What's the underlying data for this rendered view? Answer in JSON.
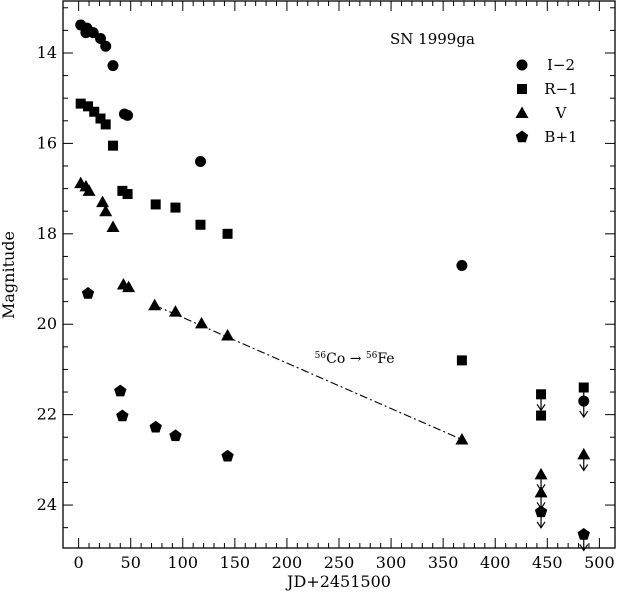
{
  "chart_data": {
    "type": "scatter",
    "title": "SN 1999ga",
    "xlabel": "JD+2451500",
    "ylabel": "Magnitude",
    "xlim": [
      -15,
      515
    ],
    "ylim": [
      24.95,
      12.85
    ],
    "y_inverted": true,
    "grid": false,
    "legend_position": "top-right",
    "xticks": [
      0,
      50,
      100,
      150,
      200,
      250,
      300,
      350,
      400,
      450,
      500
    ],
    "yticks": [
      14,
      16,
      18,
      20,
      22,
      24
    ],
    "annotation": {
      "text_parts": [
        "56",
        "Co",
        " → ",
        "56",
        "Fe"
      ],
      "x": 265,
      "y": 20.75
    },
    "fit_line": {
      "style": "dash-dot",
      "x": [
        73,
        368
      ],
      "y": [
        19.58,
        22.55
      ]
    },
    "series": [
      {
        "name": "I−2",
        "marker": "circle",
        "points": [
          [
            2,
            13.38
          ],
          [
            7,
            13.55
          ],
          [
            8,
            13.45
          ],
          [
            14,
            13.55
          ],
          [
            21,
            13.68
          ],
          [
            26,
            13.85
          ],
          [
            33,
            14.28
          ],
          [
            44,
            15.35
          ],
          [
            47,
            15.38
          ],
          [
            117,
            16.4
          ],
          [
            368,
            18.7
          ]
        ],
        "upper_limits": [
          [
            485,
            21.7
          ]
        ]
      },
      {
        "name": "R−1",
        "marker": "square",
        "points": [
          [
            2,
            15.12
          ],
          [
            9,
            15.18
          ],
          [
            15,
            15.3
          ],
          [
            21,
            15.45
          ],
          [
            26,
            15.58
          ],
          [
            33,
            16.05
          ],
          [
            42,
            17.05
          ],
          [
            47,
            17.12
          ],
          [
            74,
            17.35
          ],
          [
            93,
            17.42
          ],
          [
            117,
            17.8
          ],
          [
            143,
            18.0
          ],
          [
            368,
            20.8
          ],
          [
            444,
            22.02
          ]
        ],
        "upper_limits": [
          [
            444,
            21.55
          ],
          [
            485,
            21.4
          ]
        ]
      },
      {
        "name": "V",
        "marker": "triangle",
        "points": [
          [
            2,
            16.88
          ],
          [
            7,
            16.95
          ],
          [
            10,
            17.05
          ],
          [
            23,
            17.3
          ],
          [
            26,
            17.5
          ],
          [
            33,
            17.85
          ],
          [
            43,
            19.12
          ],
          [
            48,
            19.18
          ],
          [
            73,
            19.58
          ],
          [
            93,
            19.72
          ],
          [
            118,
            19.98
          ],
          [
            143,
            20.25
          ],
          [
            368,
            22.55
          ]
        ],
        "upper_limits": [
          [
            444,
            23.32
          ],
          [
            444,
            23.72
          ],
          [
            485,
            22.88
          ]
        ]
      },
      {
        "name": "B+1",
        "marker": "pentagon",
        "points": [
          [
            9,
            19.32
          ],
          [
            40,
            21.48
          ],
          [
            42,
            22.03
          ],
          [
            74,
            22.28
          ],
          [
            93,
            22.47
          ],
          [
            143,
            22.92
          ]
        ],
        "upper_limits": [
          [
            444,
            24.15
          ],
          [
            485,
            24.65
          ]
        ]
      }
    ]
  }
}
